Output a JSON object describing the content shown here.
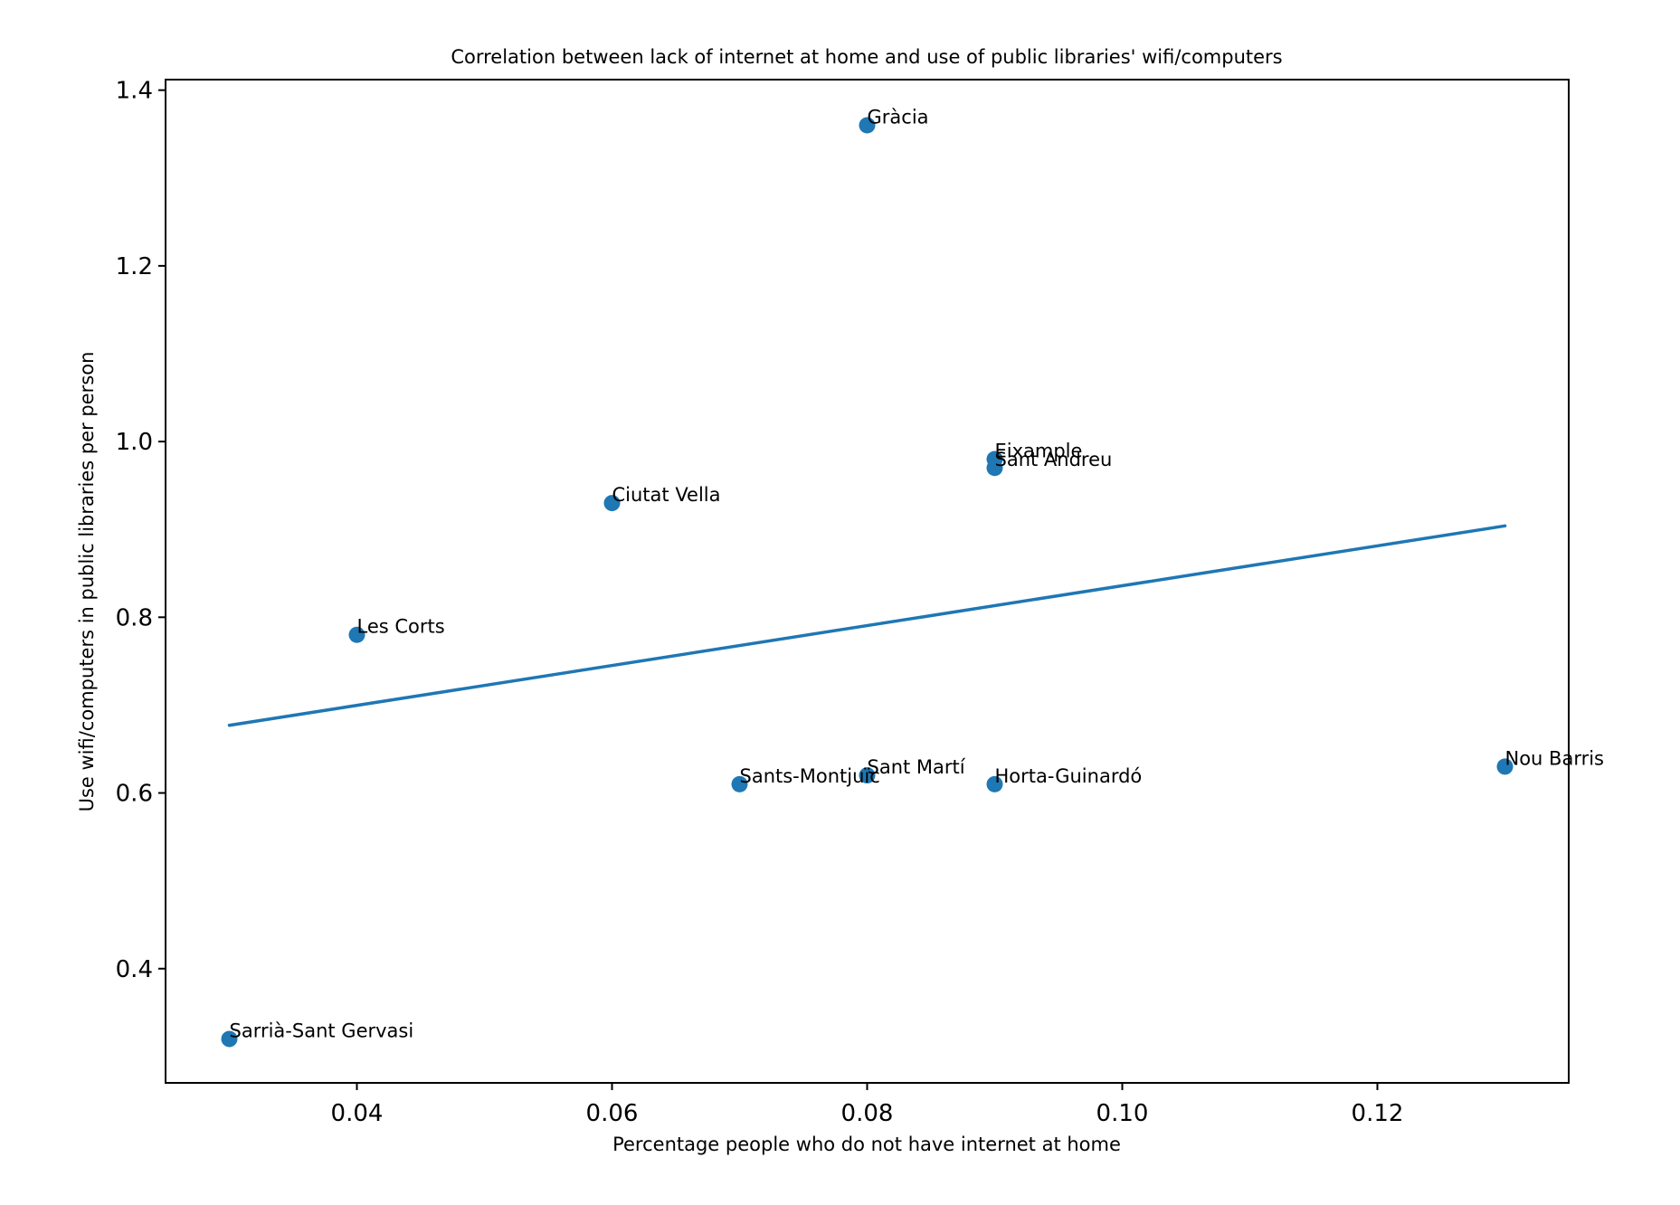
{
  "chart_data": {
    "type": "scatter",
    "title": "Correlation between lack of internet at home and use of public libraries' wifi/computers",
    "xlabel": "Percentage people who do not have internet at home",
    "ylabel": "Use wifi/computers in public libraries per person",
    "xlim": [
      0.025,
      0.135
    ],
    "ylim": [
      0.27,
      1.412
    ],
    "xticks": [
      {
        "value": 0.04,
        "label": "0.04"
      },
      {
        "value": 0.06,
        "label": "0.06"
      },
      {
        "value": 0.08,
        "label": "0.08"
      },
      {
        "value": 0.1,
        "label": "0.10"
      },
      {
        "value": 0.12,
        "label": "0.12"
      }
    ],
    "yticks": [
      {
        "value": 0.4,
        "label": "0.4"
      },
      {
        "value": 0.6,
        "label": "0.6"
      },
      {
        "value": 0.8,
        "label": "0.8"
      },
      {
        "value": 1.0,
        "label": "1.0"
      },
      {
        "value": 1.2,
        "label": "1.2"
      },
      {
        "value": 1.4,
        "label": "1.4"
      }
    ],
    "grid": false,
    "color": "#1f77b4",
    "points": [
      {
        "label": "Gràcia",
        "x": 0.08,
        "y": 1.36
      },
      {
        "label": "Eixample",
        "x": 0.09,
        "y": 0.98
      },
      {
        "label": "Sant Andreu",
        "x": 0.09,
        "y": 0.97
      },
      {
        "label": "Ciutat Vella",
        "x": 0.06,
        "y": 0.93
      },
      {
        "label": "Les Corts",
        "x": 0.04,
        "y": 0.78
      },
      {
        "label": "Sants-Montjuïc",
        "x": 0.07,
        "y": 0.61
      },
      {
        "label": "Sant Martí",
        "x": 0.08,
        "y": 0.62
      },
      {
        "label": "Horta-Guinardó",
        "x": 0.09,
        "y": 0.61
      },
      {
        "label": "Nou Barris",
        "x": 0.13,
        "y": 0.63
      },
      {
        "label": "Sarrià-Sant Gervasi",
        "x": 0.03,
        "y": 0.32
      }
    ],
    "trendline": {
      "x": [
        0.03,
        0.13
      ],
      "y": [
        0.677,
        0.904
      ]
    }
  }
}
